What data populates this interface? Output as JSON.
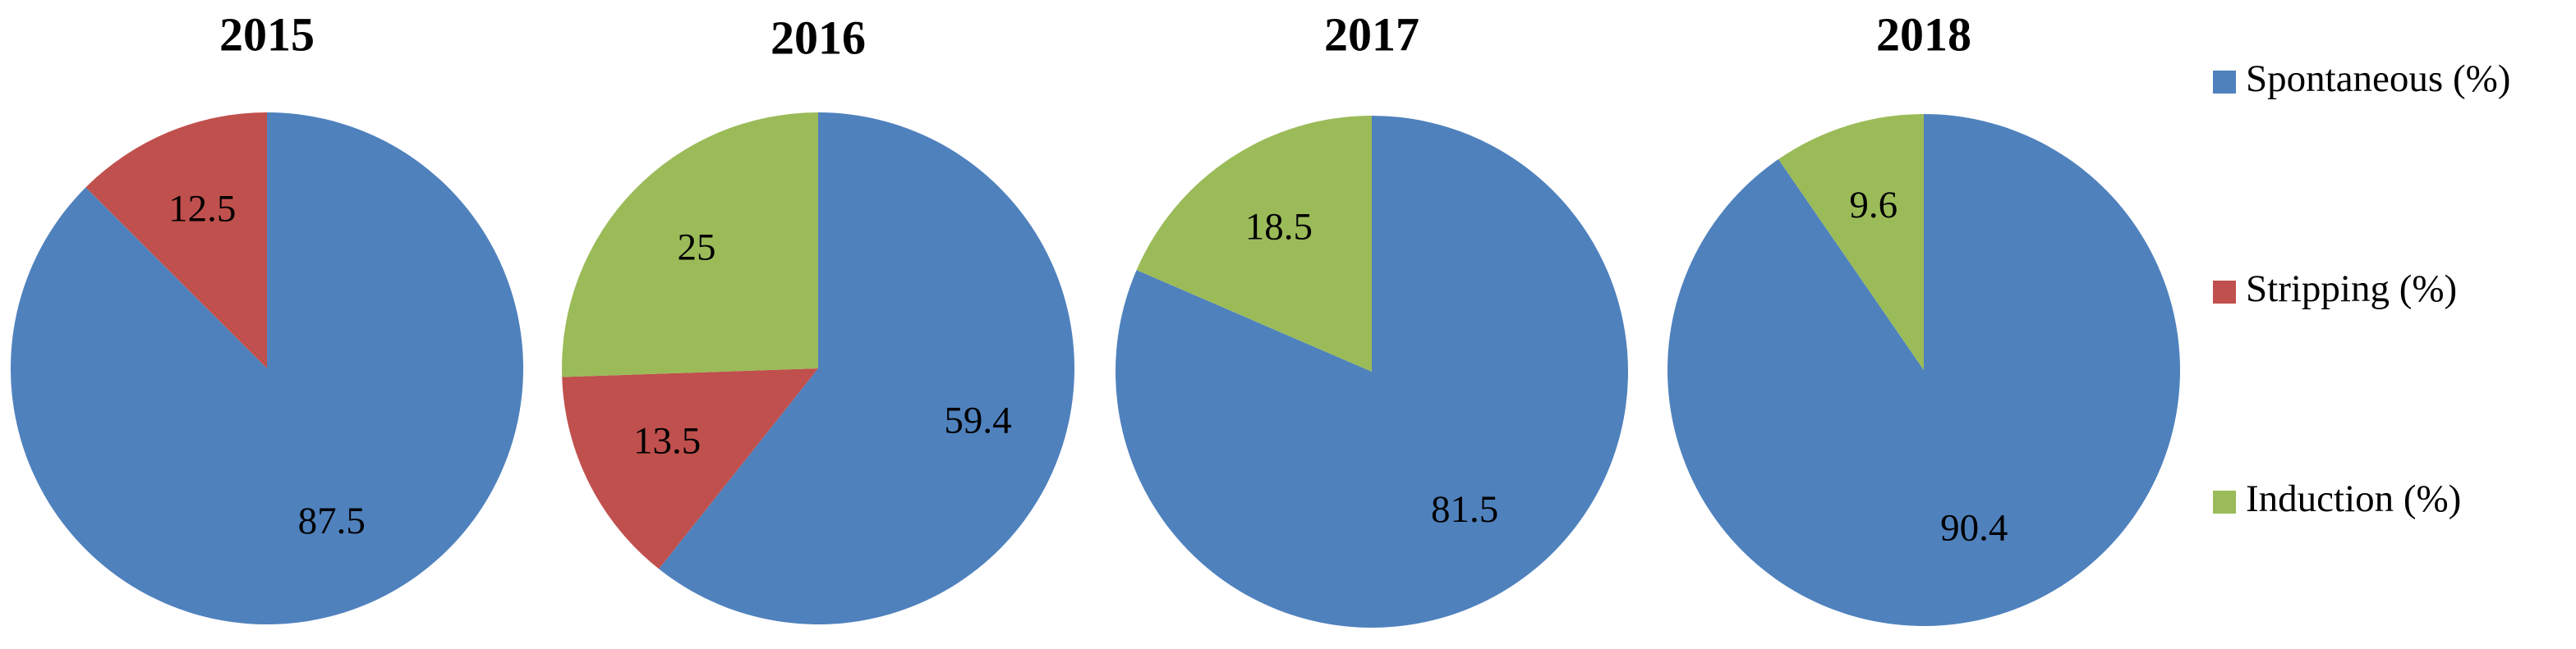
{
  "chart_data": [
    {
      "type": "pie",
      "title": "2015",
      "slices": [
        {
          "series": "Spontaneous (%)",
          "value": 87.5,
          "label": "87.5"
        },
        {
          "series": "Stripping (%)",
          "value": 12.5,
          "label": "12.5"
        },
        {
          "series": "Induction (%)",
          "value": 0,
          "label": ""
        }
      ]
    },
    {
      "type": "pie",
      "title": "2016",
      "slices": [
        {
          "series": "Spontaneous (%)",
          "value": 59.4,
          "label": "59.4"
        },
        {
          "series": "Stripping (%)",
          "value": 13.5,
          "label": "13.5"
        },
        {
          "series": "Induction (%)",
          "value": 25,
          "label": "25"
        }
      ]
    },
    {
      "type": "pie",
      "title": "2017",
      "slices": [
        {
          "series": "Spontaneous (%)",
          "value": 81.5,
          "label": "81.5"
        },
        {
          "series": "Stripping (%)",
          "value": 0,
          "label": ""
        },
        {
          "series": "Induction (%)",
          "value": 18.5,
          "label": "18.5"
        }
      ]
    },
    {
      "type": "pie",
      "title": "2018",
      "slices": [
        {
          "series": "Spontaneous (%)",
          "value": 90.4,
          "label": "90.4"
        },
        {
          "series": "Stripping (%)",
          "value": 0,
          "label": ""
        },
        {
          "series": "Induction (%)",
          "value": 9.6,
          "label": "9.6"
        }
      ]
    }
  ],
  "legend": {
    "position": "right",
    "items": [
      {
        "label": "Spontaneous (%)",
        "color": "#4F81BD"
      },
      {
        "label": "Stripping (%)",
        "color": "#C0504D"
      },
      {
        "label": "Induction (%)",
        "color": "#9BBB59"
      }
    ]
  },
  "colors": {
    "Spontaneous (%)": "#4F81BD",
    "Stripping (%)": "#C0504D",
    "Induction (%)": "#9BBB59"
  }
}
